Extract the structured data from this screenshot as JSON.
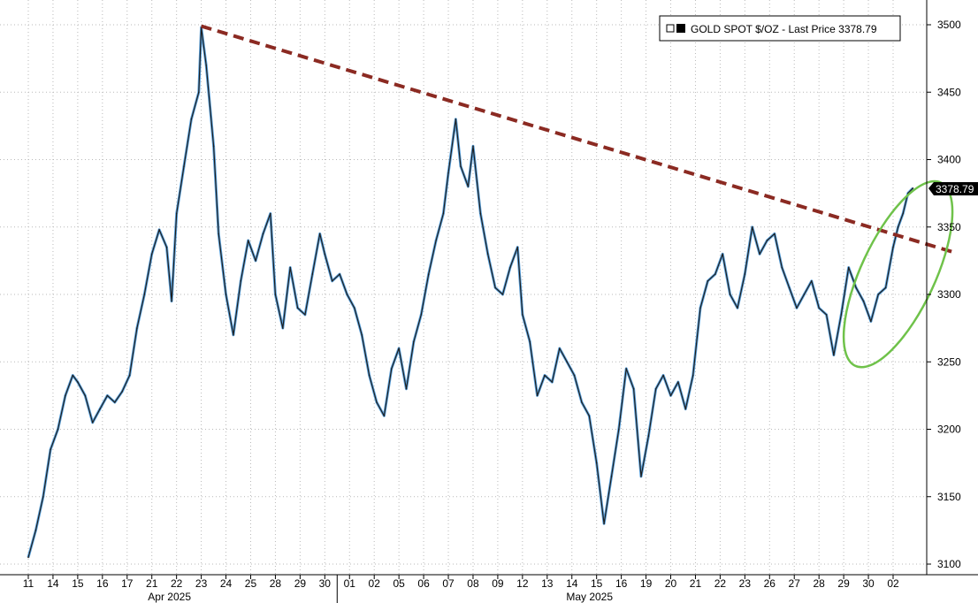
{
  "chart_data": {
    "type": "line",
    "legend": {
      "label": "GOLD SPOT $/OZ - Last Price 3378.79",
      "swatch_color": "#000000",
      "placement": "top-right"
    },
    "last_price_label": "3378.79",
    "y_axis": {
      "position": "right",
      "ylim": [
        3100,
        3500
      ],
      "ticks": [
        "3500",
        "3450",
        "3400",
        "3350",
        "3300",
        "3250",
        "3200",
        "3150",
        "3100"
      ]
    },
    "x_axis": {
      "day_labels": [
        "11",
        "14",
        "15",
        "16",
        "17",
        "21",
        "22",
        "23",
        "24",
        "25",
        "28",
        "29",
        "30",
        "01",
        "02",
        "05",
        "06",
        "07",
        "08",
        "09",
        "12",
        "13",
        "14",
        "15",
        "16",
        "19",
        "20",
        "21",
        "22",
        "23",
        "26",
        "27",
        "28",
        "29",
        "30",
        "02"
      ],
      "month_labels": [
        {
          "label": "Apr 2025",
          "day_index": 6
        },
        {
          "label": "May 2025",
          "day_index": 23
        }
      ],
      "month_divider_after_index": 12
    },
    "grid": true,
    "series": [
      {
        "color": "#1f1f1f",
        "highlight_color": "#3b8fd6",
        "points": [
          [
            0,
            3105
          ],
          [
            0.3,
            3125
          ],
          [
            0.6,
            3150
          ],
          [
            0.9,
            3185
          ],
          [
            1.2,
            3200
          ],
          [
            1.5,
            3225
          ],
          [
            1.8,
            3240
          ],
          [
            2.0,
            3235
          ],
          [
            2.3,
            3225
          ],
          [
            2.6,
            3205
          ],
          [
            2.9,
            3215
          ],
          [
            3.2,
            3225
          ],
          [
            3.5,
            3220
          ],
          [
            3.8,
            3228
          ],
          [
            4.1,
            3240
          ],
          [
            4.4,
            3275
          ],
          [
            4.7,
            3300
          ],
          [
            5.0,
            3330
          ],
          [
            5.3,
            3348
          ],
          [
            5.6,
            3335
          ],
          [
            5.8,
            3295
          ],
          [
            6.0,
            3360
          ],
          [
            6.3,
            3395
          ],
          [
            6.6,
            3430
          ],
          [
            6.9,
            3450
          ],
          [
            7.0,
            3498
          ],
          [
            7.2,
            3470
          ],
          [
            7.5,
            3410
          ],
          [
            7.7,
            3345
          ],
          [
            8.0,
            3300
          ],
          [
            8.3,
            3270
          ],
          [
            8.6,
            3310
          ],
          [
            8.9,
            3340
          ],
          [
            9.2,
            3325
          ],
          [
            9.5,
            3345
          ],
          [
            9.8,
            3360
          ],
          [
            10.0,
            3300
          ],
          [
            10.3,
            3275
          ],
          [
            10.6,
            3320
          ],
          [
            10.9,
            3290
          ],
          [
            11.2,
            3285
          ],
          [
            11.5,
            3315
          ],
          [
            11.8,
            3345
          ],
          [
            12.0,
            3330
          ],
          [
            12.3,
            3310
          ],
          [
            12.6,
            3315
          ],
          [
            12.9,
            3300
          ],
          [
            13.2,
            3290
          ],
          [
            13.5,
            3270
          ],
          [
            13.8,
            3240
          ],
          [
            14.1,
            3220
          ],
          [
            14.4,
            3210
          ],
          [
            14.7,
            3245
          ],
          [
            15.0,
            3260
          ],
          [
            15.3,
            3230
          ],
          [
            15.6,
            3265
          ],
          [
            15.9,
            3285
          ],
          [
            16.2,
            3315
          ],
          [
            16.5,
            3340
          ],
          [
            16.8,
            3360
          ],
          [
            17.0,
            3390
          ],
          [
            17.3,
            3430
          ],
          [
            17.5,
            3395
          ],
          [
            17.8,
            3380
          ],
          [
            18.0,
            3410
          ],
          [
            18.3,
            3360
          ],
          [
            18.6,
            3330
          ],
          [
            18.9,
            3305
          ],
          [
            19.2,
            3300
          ],
          [
            19.5,
            3320
          ],
          [
            19.8,
            3335
          ],
          [
            20.0,
            3285
          ],
          [
            20.3,
            3265
          ],
          [
            20.6,
            3225
          ],
          [
            20.9,
            3240
          ],
          [
            21.2,
            3235
          ],
          [
            21.5,
            3260
          ],
          [
            21.8,
            3250
          ],
          [
            22.1,
            3240
          ],
          [
            22.4,
            3220
          ],
          [
            22.7,
            3210
          ],
          [
            23.0,
            3175
          ],
          [
            23.3,
            3130
          ],
          [
            23.6,
            3165
          ],
          [
            23.9,
            3200
          ],
          [
            24.2,
            3245
          ],
          [
            24.5,
            3230
          ],
          [
            24.8,
            3165
          ],
          [
            25.1,
            3195
          ],
          [
            25.4,
            3230
          ],
          [
            25.7,
            3240
          ],
          [
            26.0,
            3225
          ],
          [
            26.3,
            3235
          ],
          [
            26.6,
            3215
          ],
          [
            26.9,
            3240
          ],
          [
            27.2,
            3290
          ],
          [
            27.5,
            3310
          ],
          [
            27.8,
            3315
          ],
          [
            28.1,
            3330
          ],
          [
            28.4,
            3300
          ],
          [
            28.7,
            3290
          ],
          [
            29.0,
            3315
          ],
          [
            29.3,
            3350
          ],
          [
            29.6,
            3330
          ],
          [
            29.9,
            3340
          ],
          [
            30.2,
            3345
          ],
          [
            30.5,
            3320
          ],
          [
            30.8,
            3305
          ],
          [
            31.1,
            3290
          ],
          [
            31.4,
            3300
          ],
          [
            31.7,
            3310
          ],
          [
            32.0,
            3290
          ],
          [
            32.3,
            3285
          ],
          [
            32.6,
            3255
          ],
          [
            32.9,
            3285
          ],
          [
            33.2,
            3320
          ],
          [
            33.5,
            3305
          ],
          [
            33.8,
            3295
          ],
          [
            34.1,
            3280
          ],
          [
            34.4,
            3300
          ],
          [
            34.7,
            3305
          ],
          [
            35.0,
            3335
          ],
          [
            35.2,
            3350
          ],
          [
            35.4,
            3360
          ],
          [
            35.6,
            3375
          ],
          [
            35.8,
            3378.79
          ]
        ]
      }
    ],
    "annotations": [
      {
        "type": "trendline",
        "color": "#8b2a22",
        "style": "dashed",
        "from": [
          7.0,
          3499
        ],
        "to": [
          37.5,
          3331
        ]
      },
      {
        "type": "ellipse",
        "color": "#6fc24a",
        "center": [
          35.2,
          3315
        ],
        "rx": 1.5,
        "ry": 75
      }
    ]
  }
}
